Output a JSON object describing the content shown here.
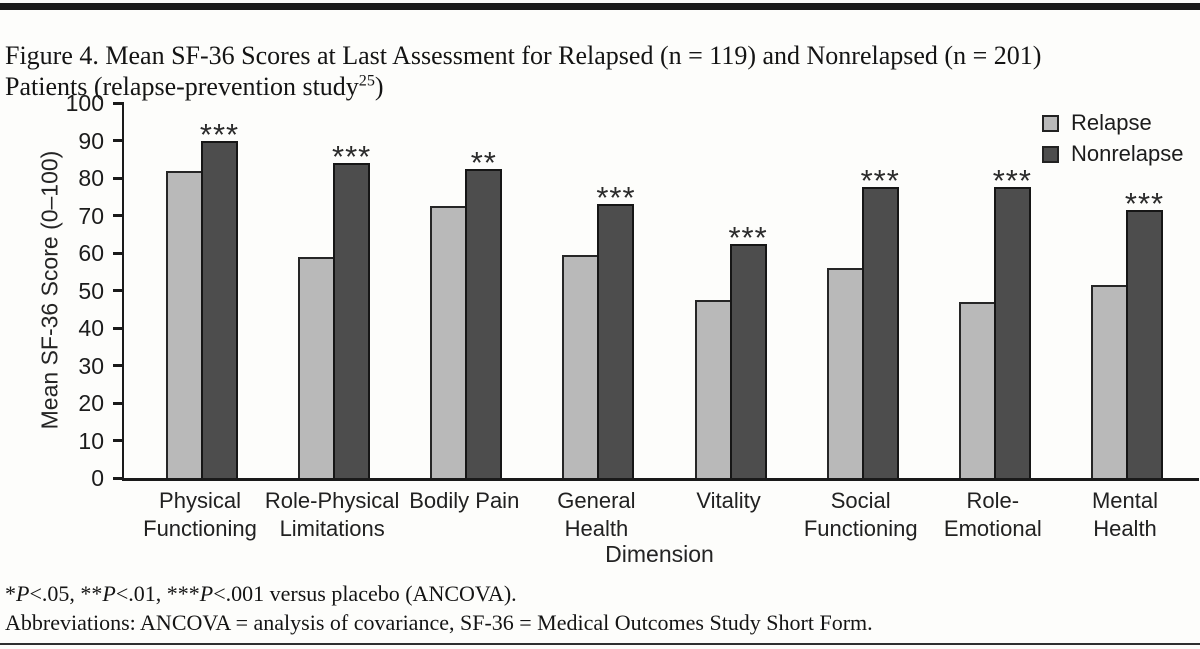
{
  "title": {
    "line1": "Figure 4. Mean SF-36 Scores at Last Assessment for Relapsed (n = 119) and Nonrelapsed (n = 201)",
    "line2_text": "Patients (relapse-prevention study",
    "line2_superscript": "25",
    "line2_close": ")"
  },
  "chart_data": {
    "type": "bar",
    "title": "Mean SF-36 Scores at Last Assessment for Relapsed and Nonrelapsed Patients",
    "xlabel": "Dimension",
    "ylabel": "Mean SF-36 Score (0–100)",
    "ylim": [
      0,
      100
    ],
    "y_ticks": [
      0,
      10,
      20,
      30,
      40,
      50,
      60,
      70,
      80,
      90,
      100
    ],
    "grid": false,
    "legend_position": "top-right",
    "categories": [
      "Physical\nFunctioning",
      "Role-Physical\nLimitations",
      "Bodily Pain",
      "General\nHealth",
      "Vitality",
      "Social\nFunctioning",
      "Role-\nEmotional",
      "Mental\nHealth"
    ],
    "series": [
      {
        "name": "Relapse",
        "color": "#b9b9b9",
        "values": [
          82,
          59,
          72.5,
          59.5,
          47.5,
          56,
          47,
          51.5
        ]
      },
      {
        "name": "Nonrelapse",
        "color": "#4d4d4d",
        "values": [
          90,
          84,
          82.5,
          73,
          62.5,
          77.5,
          77.5,
          71.5
        ]
      }
    ],
    "significance": [
      "***",
      "***",
      "**",
      "***",
      "***",
      "***",
      "***",
      "***"
    ]
  },
  "footnotes": {
    "significance_segments": [
      {
        "text": "*"
      },
      {
        "text": "P",
        "italic": true
      },
      {
        "text": "<.05, **"
      },
      {
        "text": "P",
        "italic": true
      },
      {
        "text": "<.01, ***"
      },
      {
        "text": "P",
        "italic": true
      },
      {
        "text": "<.001 versus placebo (ANCOVA)."
      }
    ],
    "abbreviations": "Abbreviations: ANCOVA = analysis of covariance, SF-36 = Medical Outcomes Study Short Form."
  },
  "colors": {
    "relapse_bar": "#b9b9b9",
    "nonrelapse_bar": "#4d4d4d",
    "axis": "#1a1a1a",
    "rule": "#1b1b1b"
  }
}
